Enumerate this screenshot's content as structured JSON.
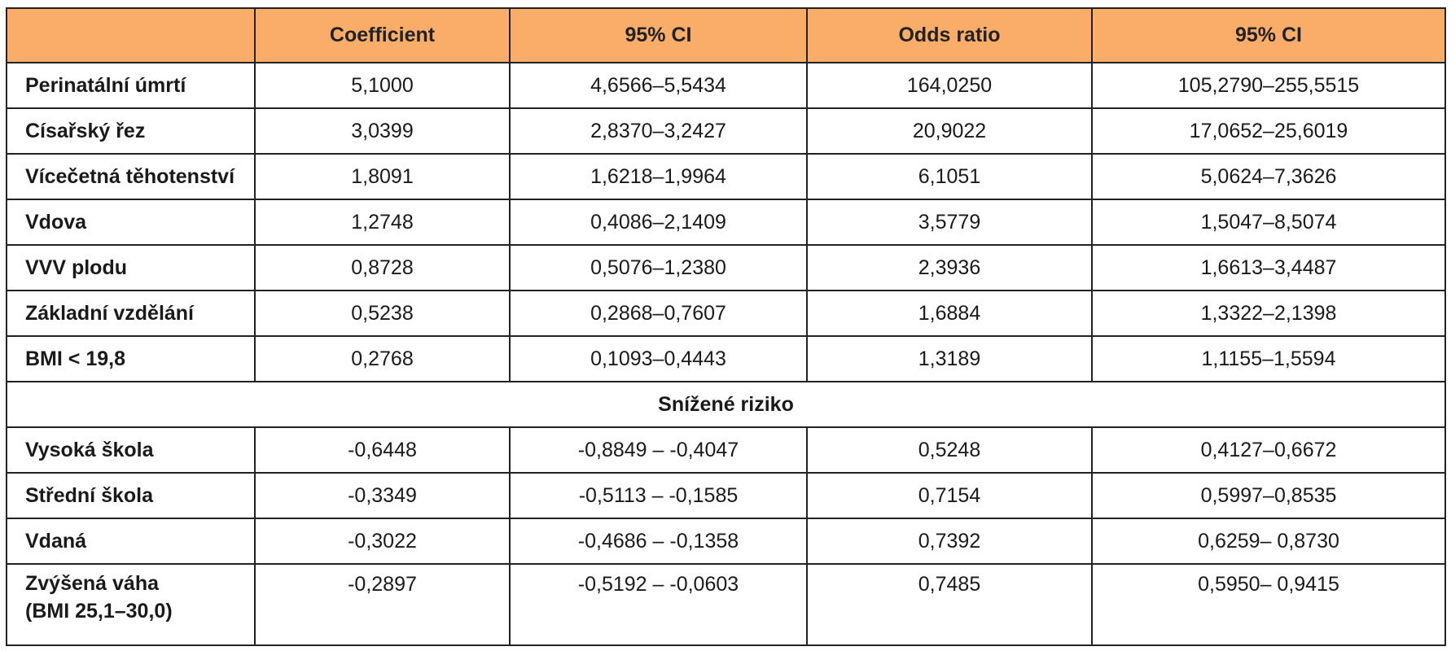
{
  "columns": [
    "",
    "Coefficient",
    "95% CI",
    "Odds ratio",
    "95% CI"
  ],
  "rows": [
    {
      "label": "Perinatální úmrtí",
      "coef": "5,1000",
      "ci1": "4,6566–5,5434",
      "or": "164,0250",
      "ci2": "105,2790–255,5515"
    },
    {
      "label": "Císařský řez",
      "coef": "3,0399",
      "ci1": "2,8370–3,2427",
      "or": "20,9022",
      "ci2": "17,0652–25,6019"
    },
    {
      "label": "Vícečetná těhotenství",
      "coef": "1,8091",
      "ci1": "1,6218–1,9964",
      "or": "6,1051",
      "ci2": "5,0624–7,3626"
    },
    {
      "label": "Vdova",
      "coef": "1,2748",
      "ci1": "0,4086–2,1409",
      "or": "3,5779",
      "ci2": "1,5047–8,5074"
    },
    {
      "label": "VVV plodu",
      "coef": "0,8728",
      "ci1": "0,5076–1,2380",
      "or": "2,3936",
      "ci2": "1,6613–3,4487"
    },
    {
      "label": "Základní vzdělání",
      "coef": "0,5238",
      "ci1": "0,2868–0,7607",
      "or": "1,6884",
      "ci2": "1,3322–2,1398"
    },
    {
      "label": "BMI < 19,8",
      "coef": "0,2768",
      "ci1": "0,1093–0,4443",
      "or": "1,3189",
      "ci2": "1,1155–1,5594"
    }
  ],
  "section_label": "Snížené riziko",
  "rows2": [
    {
      "label": "Vysoká škola",
      "coef": "-0,6448",
      "ci1": "-0,8849 – -0,4047",
      "or": "0,5248",
      "ci2": "0,4127–0,6672"
    },
    {
      "label": "Střední škola",
      "coef": "-0,3349",
      "ci1": "-0,5113 – -0,1585",
      "or": "0,7154",
      "ci2": "0,5997–0,8535"
    },
    {
      "label": "Vdaná",
      "coef": "-0,3022",
      "ci1": "-0,4686 – -0,1358",
      "or": "0,7392",
      "ci2": "0,6259– 0,8730"
    }
  ],
  "last_row": {
    "label_line1": "Zvýšená váha",
    "label_line2": "(BMI 25,1–30,0)",
    "coef": "-0,2897",
    "ci1": "-0,5192 – -0,0603",
    "or": "0,7485",
    "ci2": "0,5950– 0,9415"
  }
}
